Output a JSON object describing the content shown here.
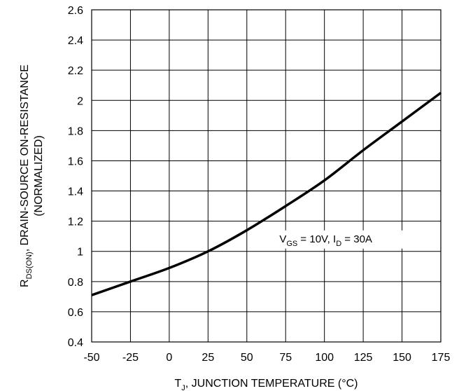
{
  "chart_data": {
    "type": "line",
    "xlabel": {
      "prefix": "T",
      "subscript": "J",
      "suffix": ", JUNCTION TEMPERATURE (°C)"
    },
    "ylabel": {
      "line1_prefix": "R",
      "line1_subscript": "DS(ON)",
      "line1_suffix": ", DRAIN-SOURCE ON-RESISTANCE",
      "line2": "(NORMALIZED)"
    },
    "annotation": {
      "v_prefix": "V",
      "v_subscript": "GS",
      "v_value": " = 10V, I",
      "i_subscript": "D",
      "i_value": " = 30A"
    },
    "xlim": [
      -50,
      175
    ],
    "ylim": [
      0.4,
      2.6
    ],
    "x_ticks": [
      "-50",
      "-25",
      "0",
      "25",
      "50",
      "75",
      "100",
      "125",
      "150",
      "175"
    ],
    "y_ticks": [
      "0.4",
      "0.6",
      "0.8",
      "1",
      "1.2",
      "1.4",
      "1.6",
      "1.8",
      "2",
      "2.2",
      "2.4",
      "2.6"
    ],
    "x_tick_values": [
      -50,
      -25,
      0,
      25,
      50,
      75,
      100,
      125,
      150,
      175
    ],
    "y_tick_values": [
      0.4,
      0.6,
      0.8,
      1.0,
      1.2,
      1.4,
      1.6,
      1.8,
      2.0,
      2.2,
      2.4,
      2.6
    ],
    "grid": true,
    "series": [
      {
        "x": [
          -50,
          -25,
          0,
          25,
          50,
          75,
          100,
          125,
          150,
          175
        ],
        "y": [
          0.71,
          0.8,
          0.89,
          1.0,
          1.14,
          1.3,
          1.47,
          1.67,
          1.86,
          2.05
        ]
      }
    ],
    "line_color": "#000000"
  }
}
